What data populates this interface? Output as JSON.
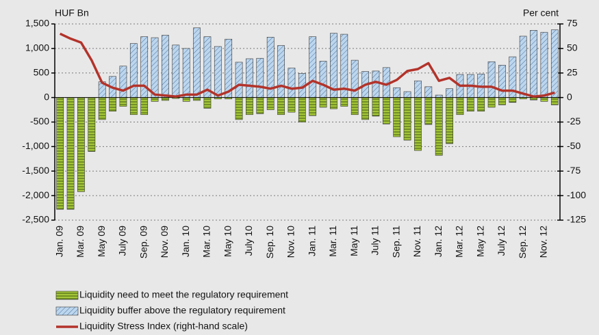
{
  "chart_data": {
    "type": "bar-line",
    "y_label": "HUF Bn",
    "y2_label": "Per cent",
    "categories": [
      "Jan. 09",
      null,
      "Mar. 09",
      null,
      "May 09",
      null,
      "July 09",
      null,
      "Sep. 09",
      null,
      "Nov. 09",
      null,
      "Jan. 10",
      null,
      "Mar. 10",
      null,
      "May 10",
      null,
      "July 10",
      null,
      "Sep. 10",
      null,
      "Nov. 10",
      null,
      "Jan. 11",
      null,
      "Mar. 11",
      null,
      "May 11",
      null,
      "July 11",
      null,
      "Sep. 11",
      null,
      "Nov. 11",
      null,
      "Jan. 12",
      null,
      "Mar. 12",
      null,
      "May 12",
      null,
      "July 12",
      null,
      "Sep. 12",
      null,
      "Nov. 12",
      null
    ],
    "series": [
      {
        "name": "Liquidity need to meet the regulatory requirement",
        "color": "#a4c639",
        "kind": "bar",
        "values": [
          -2280,
          -2280,
          -1920,
          -1100,
          -450,
          -280,
          -180,
          -350,
          -350,
          -80,
          -60,
          -20,
          -80,
          -60,
          -220,
          -30,
          -30,
          -450,
          -350,
          -330,
          -250,
          -350,
          -300,
          -500,
          -370,
          -200,
          -230,
          -180,
          -350,
          -450,
          -380,
          -540,
          -800,
          -870,
          -1080,
          -550,
          -1180,
          -940,
          -350,
          -280,
          -280,
          -200,
          -150,
          -100,
          -30,
          -50,
          -80,
          -150
        ]
      },
      {
        "name": "Liquidity buffer above the regulatory requirement",
        "color": "#bcd6ee",
        "kind": "bar",
        "values": [
          0,
          0,
          0,
          0,
          320,
          430,
          640,
          1100,
          1240,
          1220,
          1270,
          1070,
          1000,
          1420,
          1240,
          1040,
          1190,
          720,
          790,
          800,
          1230,
          1060,
          600,
          490,
          1240,
          740,
          1310,
          1290,
          760,
          530,
          540,
          610,
          200,
          120,
          340,
          220,
          50,
          180,
          470,
          470,
          480,
          730,
          660,
          830,
          1250,
          1370,
          1330,
          1380
        ]
      },
      {
        "name": "Liquidity Stress Index (right-hand scale)",
        "color": "#b3332a",
        "kind": "line",
        "axis": "y2",
        "values": [
          65,
          60,
          56,
          38,
          15,
          10,
          7,
          12,
          12,
          3,
          2,
          1,
          3,
          3,
          8,
          2,
          6,
          13,
          12,
          11,
          9,
          12,
          9,
          10,
          17,
          13,
          8,
          9,
          7,
          13,
          16,
          13,
          18,
          27,
          29,
          35,
          17,
          20,
          12,
          12,
          11,
          11,
          7,
          7,
          4,
          1,
          2,
          5
        ]
      }
    ],
    "ylim": [
      -2500,
      1500
    ],
    "yticks": [
      {
        "value": 1500,
        "label": "1,500"
      },
      {
        "value": 1000,
        "label": "1,000"
      },
      500,
      0,
      -500,
      {
        "value": -1000,
        "label": "-1,000"
      },
      {
        "value": -1500,
        "label": "-1,500"
      },
      {
        "value": -2000,
        "label": "-2,000"
      },
      {
        "value": -2500,
        "label": "-2,500"
      }
    ],
    "y2lim": [
      -125,
      75
    ],
    "y2ticks": [
      75,
      50,
      25,
      0,
      -25,
      -50,
      -75,
      -100,
      -125
    ],
    "grid": true
  }
}
